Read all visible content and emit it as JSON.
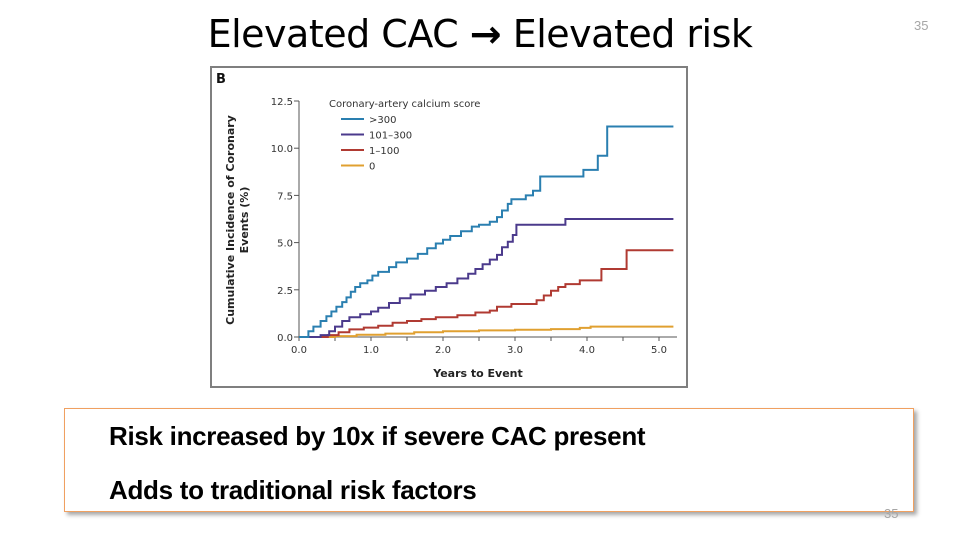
{
  "slide": {
    "title_left": "Elevated CAC",
    "title_arrow": "→",
    "title_right": "Elevated risk",
    "page_number_top": "35",
    "page_number_bottom": "35",
    "panel_label": "B"
  },
  "callout": {
    "lines": [
      "Risk increased by 10x if severe CAC present",
      "Adds to traditional risk factors"
    ],
    "border_color": "#f0a060"
  },
  "chart_data": {
    "type": "line",
    "step": true,
    "title": "",
    "xlabel": "Years to Event",
    "ylabel_line1": "Cumulative Incidence of Coronary",
    "ylabel_line2": "Events (%)",
    "xlim": [
      0,
      5.25
    ],
    "ylim": [
      0,
      12.5
    ],
    "xticks": [
      0,
      0.5,
      1,
      1.5,
      2,
      2.5,
      3,
      3.5,
      4,
      4.5,
      5
    ],
    "xtick_labels": [
      "0.0",
      "",
      "1.0",
      "",
      "2.0",
      "",
      "3.0",
      "",
      "4.0",
      "",
      "5.0"
    ],
    "yticks": [
      0,
      2.5,
      5,
      7.5,
      10,
      12.5
    ],
    "ytick_labels": [
      "0.0",
      "2.5",
      "5.0",
      "7.5",
      "10.0",
      "12.5"
    ],
    "grid": false,
    "legend": {
      "title": "Coronary-artery calcium score",
      "placement": "top-left"
    },
    "series": [
      {
        "name": ">300",
        "color": "#2a7fb0",
        "points": [
          [
            0,
            0
          ],
          [
            0.13,
            0
          ],
          [
            0.13,
            0.3
          ],
          [
            0.2,
            0.3
          ],
          [
            0.2,
            0.55
          ],
          [
            0.3,
            0.55
          ],
          [
            0.3,
            0.85
          ],
          [
            0.38,
            0.85
          ],
          [
            0.38,
            1.1
          ],
          [
            0.45,
            1.1
          ],
          [
            0.45,
            1.35
          ],
          [
            0.52,
            1.35
          ],
          [
            0.52,
            1.6
          ],
          [
            0.6,
            1.6
          ],
          [
            0.6,
            1.85
          ],
          [
            0.66,
            1.85
          ],
          [
            0.66,
            2.1
          ],
          [
            0.72,
            2.1
          ],
          [
            0.72,
            2.4
          ],
          [
            0.78,
            2.4
          ],
          [
            0.78,
            2.65
          ],
          [
            0.85,
            2.65
          ],
          [
            0.85,
            2.85
          ],
          [
            0.95,
            2.85
          ],
          [
            0.95,
            3.0
          ],
          [
            1.02,
            3.0
          ],
          [
            1.02,
            3.25
          ],
          [
            1.1,
            3.25
          ],
          [
            1.1,
            3.45
          ],
          [
            1.25,
            3.45
          ],
          [
            1.25,
            3.7
          ],
          [
            1.35,
            3.7
          ],
          [
            1.35,
            3.95
          ],
          [
            1.5,
            3.95
          ],
          [
            1.5,
            4.15
          ],
          [
            1.65,
            4.15
          ],
          [
            1.65,
            4.4
          ],
          [
            1.78,
            4.4
          ],
          [
            1.78,
            4.7
          ],
          [
            1.9,
            4.7
          ],
          [
            1.9,
            4.95
          ],
          [
            2.0,
            4.95
          ],
          [
            2.0,
            5.15
          ],
          [
            2.1,
            5.15
          ],
          [
            2.1,
            5.35
          ],
          [
            2.25,
            5.35
          ],
          [
            2.25,
            5.6
          ],
          [
            2.4,
            5.6
          ],
          [
            2.4,
            5.85
          ],
          [
            2.5,
            5.85
          ],
          [
            2.5,
            5.95
          ],
          [
            2.65,
            5.95
          ],
          [
            2.65,
            6.1
          ],
          [
            2.75,
            6.1
          ],
          [
            2.75,
            6.35
          ],
          [
            2.82,
            6.35
          ],
          [
            2.82,
            6.7
          ],
          [
            2.9,
            6.7
          ],
          [
            2.9,
            7.05
          ],
          [
            2.95,
            7.05
          ],
          [
            2.95,
            7.3
          ],
          [
            3.15,
            7.3
          ],
          [
            3.15,
            7.5
          ],
          [
            3.25,
            7.5
          ],
          [
            3.25,
            7.75
          ],
          [
            3.35,
            7.75
          ],
          [
            3.35,
            8.5
          ],
          [
            3.95,
            8.5
          ],
          [
            3.95,
            8.85
          ],
          [
            4.15,
            8.85
          ],
          [
            4.15,
            9.6
          ],
          [
            4.28,
            9.6
          ],
          [
            4.28,
            11.15
          ],
          [
            5.2,
            11.15
          ]
        ]
      },
      {
        "name": "101–300",
        "color": "#4b3a8c",
        "points": [
          [
            0,
            0
          ],
          [
            0.3,
            0
          ],
          [
            0.3,
            0.1
          ],
          [
            0.42,
            0.1
          ],
          [
            0.42,
            0.3
          ],
          [
            0.5,
            0.3
          ],
          [
            0.5,
            0.55
          ],
          [
            0.6,
            0.55
          ],
          [
            0.6,
            0.85
          ],
          [
            0.7,
            0.85
          ],
          [
            0.7,
            1.05
          ],
          [
            0.85,
            1.05
          ],
          [
            0.85,
            1.2
          ],
          [
            1.0,
            1.2
          ],
          [
            1.0,
            1.35
          ],
          [
            1.1,
            1.35
          ],
          [
            1.1,
            1.55
          ],
          [
            1.25,
            1.55
          ],
          [
            1.25,
            1.8
          ],
          [
            1.4,
            1.8
          ],
          [
            1.4,
            2.05
          ],
          [
            1.55,
            2.05
          ],
          [
            1.55,
            2.25
          ],
          [
            1.75,
            2.25
          ],
          [
            1.75,
            2.45
          ],
          [
            1.9,
            2.45
          ],
          [
            1.9,
            2.65
          ],
          [
            2.05,
            2.65
          ],
          [
            2.05,
            2.85
          ],
          [
            2.2,
            2.85
          ],
          [
            2.2,
            3.1
          ],
          [
            2.35,
            3.1
          ],
          [
            2.35,
            3.35
          ],
          [
            2.45,
            3.35
          ],
          [
            2.45,
            3.6
          ],
          [
            2.55,
            3.6
          ],
          [
            2.55,
            3.85
          ],
          [
            2.65,
            3.85
          ],
          [
            2.65,
            4.1
          ],
          [
            2.75,
            4.1
          ],
          [
            2.75,
            4.35
          ],
          [
            2.82,
            4.35
          ],
          [
            2.82,
            4.75
          ],
          [
            2.9,
            4.75
          ],
          [
            2.9,
            5.05
          ],
          [
            2.97,
            5.05
          ],
          [
            2.97,
            5.4
          ],
          [
            3.02,
            5.4
          ],
          [
            3.02,
            5.95
          ],
          [
            3.7,
            5.95
          ],
          [
            3.7,
            6.25
          ],
          [
            5.2,
            6.25
          ]
        ]
      },
      {
        "name": "1–100",
        "color": "#b03a32",
        "points": [
          [
            0,
            0
          ],
          [
            0.4,
            0
          ],
          [
            0.4,
            0.1
          ],
          [
            0.55,
            0.1
          ],
          [
            0.55,
            0.25
          ],
          [
            0.7,
            0.25
          ],
          [
            0.7,
            0.4
          ],
          [
            0.9,
            0.4
          ],
          [
            0.9,
            0.5
          ],
          [
            1.1,
            0.5
          ],
          [
            1.1,
            0.6
          ],
          [
            1.3,
            0.6
          ],
          [
            1.3,
            0.75
          ],
          [
            1.5,
            0.75
          ],
          [
            1.5,
            0.85
          ],
          [
            1.7,
            0.85
          ],
          [
            1.7,
            0.95
          ],
          [
            1.9,
            0.95
          ],
          [
            1.9,
            1.05
          ],
          [
            2.2,
            1.05
          ],
          [
            2.2,
            1.15
          ],
          [
            2.45,
            1.15
          ],
          [
            2.45,
            1.3
          ],
          [
            2.65,
            1.3
          ],
          [
            2.65,
            1.4
          ],
          [
            2.75,
            1.4
          ],
          [
            2.75,
            1.6
          ],
          [
            2.95,
            1.6
          ],
          [
            2.95,
            1.75
          ],
          [
            3.3,
            1.75
          ],
          [
            3.3,
            1.95
          ],
          [
            3.4,
            1.95
          ],
          [
            3.4,
            2.2
          ],
          [
            3.5,
            2.2
          ],
          [
            3.5,
            2.45
          ],
          [
            3.6,
            2.45
          ],
          [
            3.6,
            2.65
          ],
          [
            3.7,
            2.65
          ],
          [
            3.7,
            2.8
          ],
          [
            3.9,
            2.8
          ],
          [
            3.9,
            3.0
          ],
          [
            4.2,
            3.0
          ],
          [
            4.2,
            3.6
          ],
          [
            4.55,
            3.6
          ],
          [
            4.55,
            4.6
          ],
          [
            5.2,
            4.6
          ]
        ]
      },
      {
        "name": "0",
        "color": "#e0a030",
        "points": [
          [
            0,
            0
          ],
          [
            0.5,
            0
          ],
          [
            0.5,
            0.05
          ],
          [
            0.8,
            0.05
          ],
          [
            0.8,
            0.12
          ],
          [
            1.2,
            0.12
          ],
          [
            1.2,
            0.18
          ],
          [
            1.6,
            0.18
          ],
          [
            1.6,
            0.25
          ],
          [
            2.0,
            0.25
          ],
          [
            2.0,
            0.3
          ],
          [
            2.5,
            0.3
          ],
          [
            2.5,
            0.35
          ],
          [
            3.0,
            0.35
          ],
          [
            3.0,
            0.38
          ],
          [
            3.5,
            0.38
          ],
          [
            3.5,
            0.42
          ],
          [
            3.9,
            0.42
          ],
          [
            3.9,
            0.48
          ],
          [
            4.05,
            0.48
          ],
          [
            4.05,
            0.55
          ],
          [
            5.2,
            0.55
          ]
        ]
      }
    ]
  }
}
